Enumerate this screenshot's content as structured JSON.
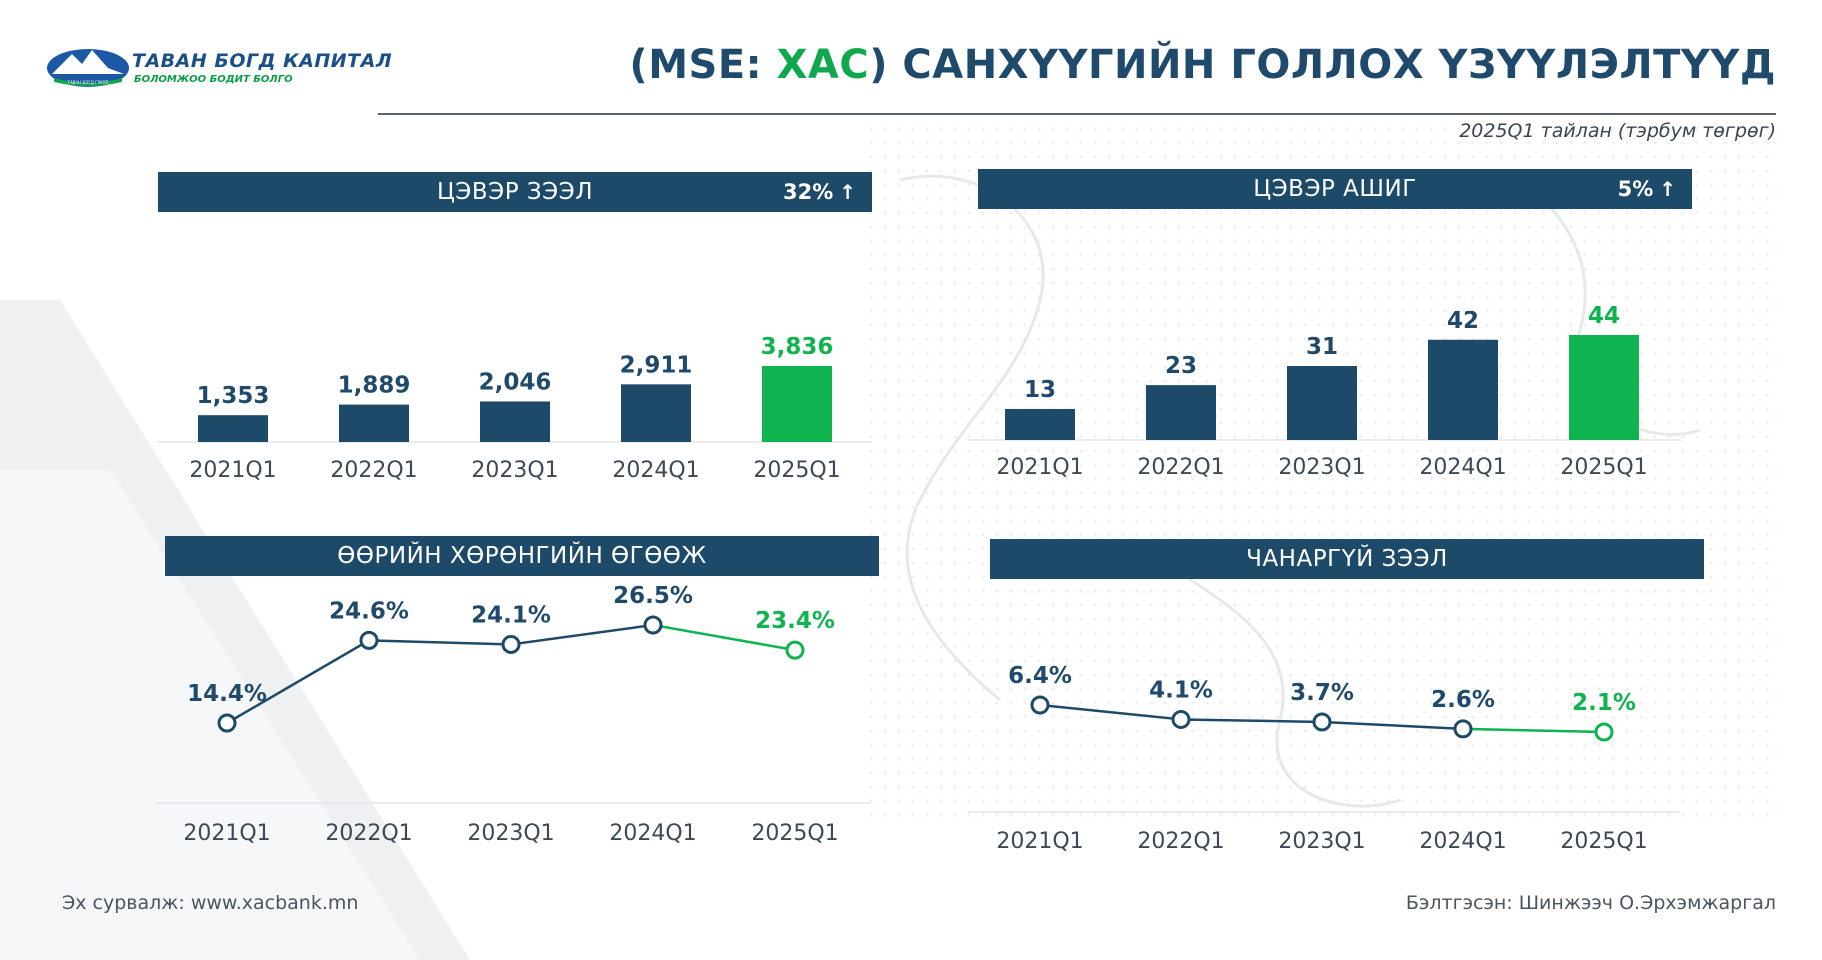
{
  "brand": {
    "name": "ТАВАН БОГД КАПИТАЛ",
    "tagline": "БОЛОМЖОО БОДИТ БОЛГО",
    "emblem_text": "ТАВАН БОГД ГРУПП"
  },
  "header": {
    "title_prefix": "(MSE: ",
    "title_ticker": "ХАС",
    "title_suffix": ") САНХҮҮГИЙН ГОЛЛОХ ҮЗҮҮЛЭЛТҮҮД",
    "subtitle": "2025Q1 тайлан (тэрбум төгрөг)"
  },
  "colors": {
    "navy": "#1e4a6a",
    "green": "#0fb34f",
    "text_dark": "#1f4a6b"
  },
  "panels": [
    {
      "title": "ЦЭВЭР ЗЭЭЛ",
      "change": "32%",
      "change_icon": "arrow-up-icon"
    },
    {
      "title": "ЦЭВЭР АШИГ",
      "change": "5%",
      "change_icon": "arrow-up-icon"
    },
    {
      "title": "ӨӨРИЙН ХӨРӨНГИЙН ӨГӨӨЖ",
      "change": "",
      "change_icon": ""
    },
    {
      "title": "ЧАНАРГҮЙ ЗЭЭЛ",
      "change": "",
      "change_icon": ""
    }
  ],
  "chart_data": [
    {
      "type": "bar",
      "title": "ЦЭВЭР ЗЭЭЛ",
      "categories": [
        "2021Q1",
        "2022Q1",
        "2023Q1",
        "2024Q1",
        "2025Q1"
      ],
      "values": [
        1353,
        1889,
        2046,
        2911,
        3836
      ],
      "labels": [
        "1,353",
        "1,889",
        "2,046",
        "2,911",
        "3,836"
      ],
      "highlight_last": true,
      "ylim": [
        0,
        3836
      ]
    },
    {
      "type": "bar",
      "title": "ЦЭВЭР АШИГ",
      "categories": [
        "2021Q1",
        "2022Q1",
        "2023Q1",
        "2024Q1",
        "2025Q1"
      ],
      "values": [
        13,
        23,
        31,
        42,
        44
      ],
      "labels": [
        "13",
        "23",
        "31",
        "42",
        "44"
      ],
      "highlight_last": true,
      "ylim": [
        0,
        44
      ]
    },
    {
      "type": "line",
      "title": "ӨӨРИЙН ХӨРӨНГИЙН ӨГӨӨЖ",
      "categories": [
        "2021Q1",
        "2022Q1",
        "2023Q1",
        "2024Q1",
        "2025Q1"
      ],
      "values": [
        14.4,
        24.6,
        24.1,
        26.5,
        23.4
      ],
      "labels": [
        "14.4%",
        "24.6%",
        "24.1%",
        "26.5%",
        "23.4%"
      ],
      "highlight_last": true,
      "ylim": [
        0,
        30
      ]
    },
    {
      "type": "line",
      "title": "ЧАНАРГҮЙ ЗЭЭЛ",
      "categories": [
        "2021Q1",
        "2022Q1",
        "2023Q1",
        "2024Q1",
        "2025Q1"
      ],
      "values": [
        6.4,
        4.1,
        3.7,
        2.6,
        2.1
      ],
      "labels": [
        "6.4%",
        "4.1%",
        "3.7%",
        "2.6%",
        "2.1%"
      ],
      "highlight_last": true,
      "ylim": [
        0,
        8
      ]
    }
  ],
  "footer": {
    "source": "Эх сурвалж: www.xacbank.mn",
    "prepared_by": "Бэлтгэсэн: Шинжээч О.Эрхэмжаргал"
  }
}
